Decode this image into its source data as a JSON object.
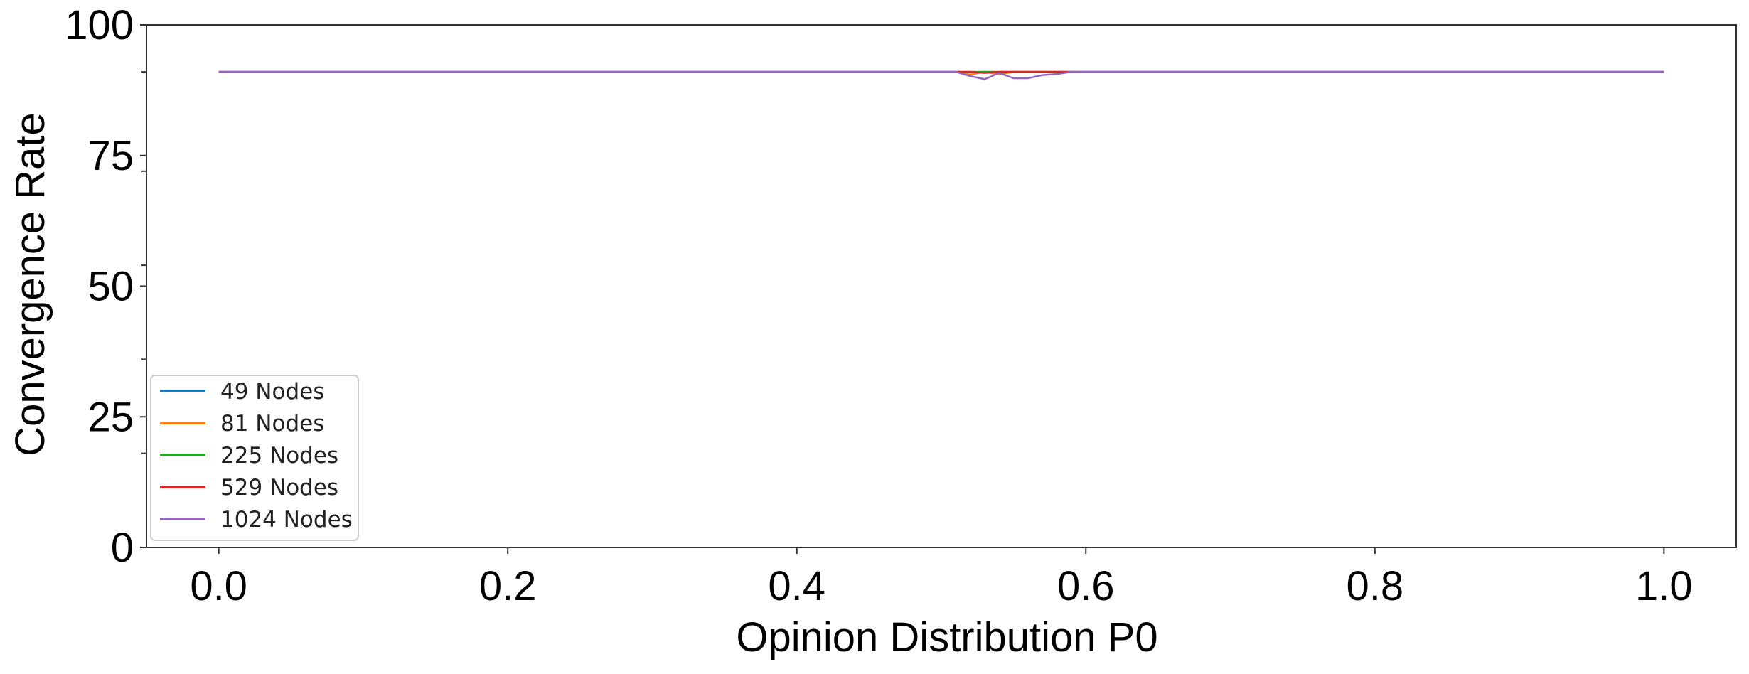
{
  "chart_data": {
    "type": "line",
    "title": "",
    "xlabel": "Opinion Distribution P0",
    "ylabel": "Convergence Rate",
    "xlim": [
      -0.05,
      1.05
    ],
    "ylim": [
      0,
      100
    ],
    "x_ticks": [
      0.0,
      0.2,
      0.4,
      0.6,
      0.8,
      1.0
    ],
    "x_tick_labels": [
      "0.0",
      "0.2",
      "0.4",
      "0.6",
      "0.8",
      "1.0"
    ],
    "y_ticks": [
      0,
      25,
      50,
      75,
      100
    ],
    "y_tick_labels": [
      "0",
      "25",
      "50",
      "75",
      "100"
    ],
    "y_minor_ticks": [
      18,
      36,
      54,
      72,
      91
    ],
    "grid": false,
    "legend_position": "lower-left",
    "series": [
      {
        "name": "49 Nodes",
        "color": "#1f77b4",
        "x": [
          0.0,
          0.51,
          0.52,
          0.53,
          0.54,
          0.55,
          0.56,
          0.57,
          0.58,
          0.59,
          1.0
        ],
        "y": [
          91,
          91,
          91,
          91,
          91,
          91,
          91,
          91,
          91,
          91,
          91
        ]
      },
      {
        "name": "81 Nodes",
        "color": "#ff7f0e",
        "x": [
          0.0,
          0.51,
          0.52,
          0.53,
          0.54,
          0.55,
          0.56,
          0.57,
          0.58,
          0.59,
          1.0
        ],
        "y": [
          91,
          91,
          90.5,
          91,
          90.5,
          91,
          91,
          91,
          91,
          91,
          91
        ]
      },
      {
        "name": "225 Nodes",
        "color": "#2ca02c",
        "x": [
          0.0,
          0.51,
          0.52,
          0.53,
          0.54,
          0.55,
          0.56,
          0.57,
          0.58,
          0.59,
          1.0
        ],
        "y": [
          91,
          91,
          91,
          91,
          91,
          91,
          91,
          91,
          91,
          91,
          91
        ]
      },
      {
        "name": "529 Nodes",
        "color": "#d62728",
        "x": [
          0.0,
          0.51,
          0.52,
          0.53,
          0.54,
          0.55,
          0.56,
          0.57,
          0.58,
          0.59,
          1.0
        ],
        "y": [
          91,
          91,
          91,
          90.8,
          91,
          91,
          91,
          91,
          91,
          91,
          91
        ]
      },
      {
        "name": "1024 Nodes",
        "color": "#9467bd",
        "x": [
          0.0,
          0.51,
          0.52,
          0.53,
          0.54,
          0.55,
          0.56,
          0.57,
          0.58,
          0.59,
          1.0
        ],
        "y": [
          91,
          91,
          90.2,
          89.6,
          90.8,
          89.8,
          89.8,
          90.4,
          90.6,
          91,
          91
        ]
      }
    ]
  }
}
